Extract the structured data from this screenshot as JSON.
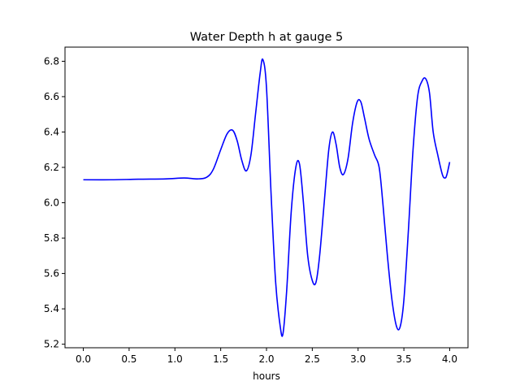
{
  "chart_data": {
    "type": "line",
    "title": "Water Depth h at gauge 5",
    "xlabel": "hours",
    "ylabel": "",
    "xlim": [
      -0.2,
      4.2
    ],
    "ylim": [
      5.18,
      6.88
    ],
    "xticks": [
      0.0,
      0.5,
      1.0,
      1.5,
      2.0,
      2.5,
      3.0,
      3.5,
      4.0
    ],
    "xtick_labels": [
      "0.0",
      "0.5",
      "1.0",
      "1.5",
      "2.0",
      "2.5",
      "3.0",
      "3.5",
      "4.0"
    ],
    "yticks": [
      5.2,
      5.4,
      5.6,
      5.8,
      6.0,
      6.2,
      6.4,
      6.6,
      6.8
    ],
    "ytick_labels": [
      "5.2",
      "5.4",
      "5.6",
      "5.8",
      "6.0",
      "6.2",
      "6.4",
      "6.6",
      "6.8"
    ],
    "grid": false,
    "series": [
      {
        "color": "#0000ff",
        "x": [
          0.0,
          0.3,
          0.6,
          0.9,
          1.1,
          1.25,
          1.35,
          1.42,
          1.5,
          1.57,
          1.63,
          1.68,
          1.73,
          1.78,
          1.83,
          1.88,
          1.93,
          1.96,
          2.0,
          2.05,
          2.1,
          2.15,
          2.18,
          2.22,
          2.27,
          2.32,
          2.36,
          2.4,
          2.45,
          2.5,
          2.54,
          2.58,
          2.63,
          2.68,
          2.72,
          2.76,
          2.8,
          2.84,
          2.89,
          2.94,
          2.99,
          3.03,
          3.07,
          3.12,
          3.18,
          3.23,
          3.27,
          3.32,
          3.37,
          3.42,
          3.46,
          3.5,
          3.55,
          3.6,
          3.65,
          3.7,
          3.74,
          3.78,
          3.82,
          3.87,
          3.92,
          3.95,
          3.97,
          4.0
        ],
        "y": [
          6.13,
          6.13,
          6.133,
          6.135,
          6.14,
          6.135,
          6.145,
          6.19,
          6.3,
          6.39,
          6.41,
          6.35,
          6.24,
          6.18,
          6.27,
          6.5,
          6.73,
          6.81,
          6.65,
          6.05,
          5.55,
          5.3,
          5.26,
          5.5,
          5.95,
          6.2,
          6.22,
          6.02,
          5.7,
          5.56,
          5.55,
          5.7,
          6.0,
          6.3,
          6.4,
          6.33,
          6.2,
          6.16,
          6.25,
          6.45,
          6.57,
          6.57,
          6.48,
          6.36,
          6.27,
          6.2,
          6.0,
          5.7,
          5.45,
          5.3,
          5.3,
          5.45,
          5.85,
          6.3,
          6.6,
          6.69,
          6.7,
          6.62,
          6.4,
          6.27,
          6.16,
          6.14,
          6.16,
          6.23
        ]
      }
    ]
  }
}
